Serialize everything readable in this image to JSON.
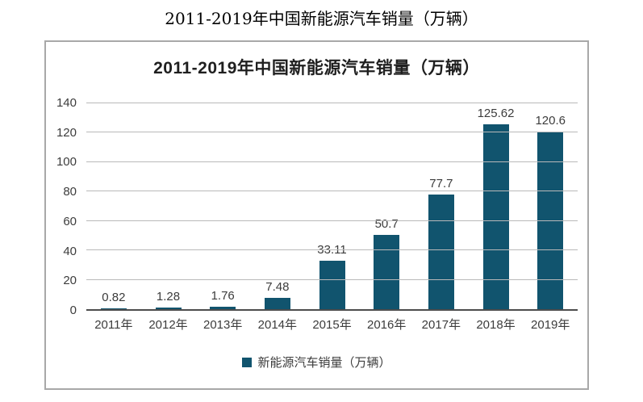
{
  "page": {
    "title": "2011-2019年中国新能源汽车销量（万辆）"
  },
  "chart": {
    "legend_label": "新能源汽车销量（万辆）",
    "colors": {
      "bar": "#11546E",
      "gridline": "#b9b9b9",
      "axis_line": "#4d4d4d",
      "text": "#3c3c3c",
      "box_border": "#a8a8a8",
      "title_text": "#1f1f1f"
    }
  },
  "chart_data": {
    "type": "bar",
    "title": "2011-2019年中国新能源汽车销量（万辆）",
    "categories": [
      "2011年",
      "2012年",
      "2013年",
      "2014年",
      "2015年",
      "2016年",
      "2017年",
      "2018年",
      "2019年"
    ],
    "values": [
      0.82,
      1.28,
      1.76,
      7.48,
      33.11,
      50.7,
      77.7,
      125.62,
      120.6
    ],
    "value_labels": [
      "0.82",
      "1.28",
      "1.76",
      "7.48",
      "33.11",
      "50.7",
      "77.7",
      "125.62",
      "120.6"
    ],
    "xlabel": "",
    "ylabel": "",
    "ylim": [
      0,
      140
    ],
    "yticks": [
      0,
      20,
      40,
      60,
      80,
      100,
      120,
      140
    ],
    "grid": true,
    "legend_entries": [
      "新能源汽车销量（万辆）"
    ],
    "legend_position": "bottom"
  }
}
